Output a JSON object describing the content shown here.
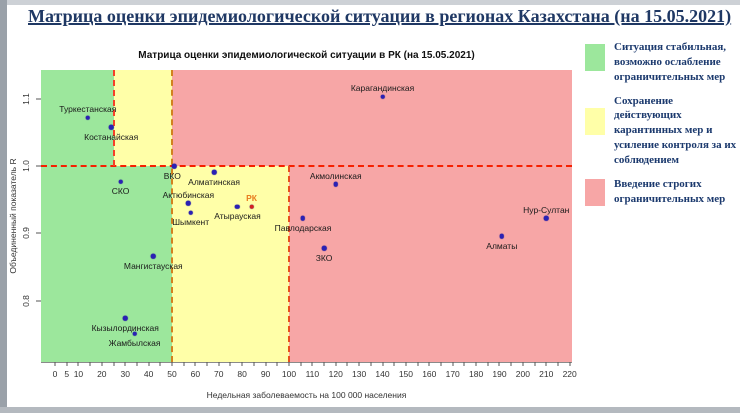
{
  "page": {
    "title": "Матрица оценки эпидемиологической ситуации в регионах Казахстана (на 15.05.2021)"
  },
  "legend": {
    "items": [
      {
        "color": "#9ce79c",
        "label": "Ситуация стабильная, возможно ослабление ограничительных мер",
        "swatch_offset": 4
      },
      {
        "color": "#ffffa8",
        "label": "Сохранение действующих карантинных мер и усиление контроля за их соблюдением",
        "swatch_offset": 14
      },
      {
        "color": "#f7a6a6",
        "label": "Введение строгих ограничительных мер",
        "swatch_offset": 2
      }
    ]
  },
  "chart_data": {
    "type": "scatter",
    "title": "Матрица оценки эпидемиологической ситуации в РК (на 15.05.2021)",
    "xlabel": "Недельная заболеваемость на 100 000 населения",
    "ylabel": "Объединенный показатель R",
    "xlim": [
      -6,
      221
    ],
    "ylim": [
      0.709,
      1.143
    ],
    "grid": false,
    "x_ticks": [
      0,
      5,
      10,
      20,
      30,
      40,
      50,
      60,
      70,
      80,
      90,
      100,
      110,
      120,
      130,
      140,
      150,
      160,
      170,
      180,
      190,
      200,
      210,
      220
    ],
    "x_minor": {
      "start": 0,
      "end": 220,
      "step": 5
    },
    "y_ticks": [
      "0.8",
      "0.9",
      "1.0",
      "1.1"
    ],
    "zones": [
      {
        "x1": -6,
        "x2": 25,
        "r1": 1.0,
        "r2": 1.143,
        "color": "#9ce79c",
        "meaning": "stable"
      },
      {
        "x1": 25,
        "x2": 50,
        "r1": 1.0,
        "r2": 1.143,
        "color": "#ffffa8",
        "meaning": "keep-measures"
      },
      {
        "x1": 50,
        "x2": 221,
        "r1": 1.0,
        "r2": 1.143,
        "color": "#f7a6a6",
        "meaning": "strict-measures"
      },
      {
        "x1": -6,
        "x2": 50,
        "r1": 0.709,
        "r2": 1.0,
        "color": "#9ce79c",
        "meaning": "stable"
      },
      {
        "x1": 50,
        "x2": 100,
        "r1": 0.709,
        "r2": 1.0,
        "color": "#ffffa8",
        "meaning": "keep-measures"
      },
      {
        "x1": 100,
        "x2": 221,
        "r1": 0.709,
        "r2": 1.0,
        "color": "#f7a6a6",
        "meaning": "strict-measures"
      }
    ],
    "threshold_lines": [
      {
        "orient": "h",
        "at": 1.0,
        "from": -6,
        "to": 221,
        "color": "#f52000"
      },
      {
        "orient": "v",
        "at": 25,
        "from": 1.0,
        "to": 1.143,
        "color": "#f54028"
      },
      {
        "orient": "v",
        "at": 50,
        "from": 0.709,
        "to": 1.143,
        "color": "#d2821e"
      },
      {
        "orient": "v",
        "at": 100,
        "from": 0.709,
        "to": 1.0,
        "color": "#e8501e"
      }
    ],
    "points": [
      {
        "name": "Туркестанская",
        "x": 14,
        "r": 1.072,
        "label_pos": "above"
      },
      {
        "name": "Костанайская",
        "x": 24,
        "r": 1.058,
        "label_pos": "below"
      },
      {
        "name": "Карагандинская",
        "x": 140,
        "r": 1.103,
        "label_pos": "above"
      },
      {
        "name": "СКО",
        "x": 28,
        "r": 0.977,
        "label_pos": "below"
      },
      {
        "name": "ВКО",
        "x": 51,
        "r": 1.0,
        "label_pos": "below",
        "dx": -2
      },
      {
        "name": "Алматинская",
        "x": 68,
        "r": 0.991,
        "label_pos": "below"
      },
      {
        "name": "Актюбинская",
        "x": 57,
        "r": 0.945,
        "label_pos": "above"
      },
      {
        "name": "Шымкент",
        "x": 58,
        "r": 0.931,
        "label_pos": "below"
      },
      {
        "name": "Атырауская",
        "x": 78,
        "r": 0.94,
        "label_pos": "below"
      },
      {
        "name": "РК",
        "x": 84,
        "r": 0.94,
        "label_pos": "above",
        "point_color": "#d42020",
        "label_color": "#e87c1e"
      },
      {
        "name": "Акмолинская",
        "x": 120,
        "r": 0.973,
        "label_pos": "above"
      },
      {
        "name": "Павлодарская",
        "x": 106,
        "r": 0.923,
        "label_pos": "below"
      },
      {
        "name": "ЗКО",
        "x": 115,
        "r": 0.878,
        "label_pos": "below"
      },
      {
        "name": "Нур-Султан",
        "x": 210,
        "r": 0.923,
        "label_pos": "above"
      },
      {
        "name": "Алматы",
        "x": 191,
        "r": 0.896,
        "label_pos": "below"
      },
      {
        "name": "Мангистауская",
        "x": 42,
        "r": 0.866,
        "label_pos": "below"
      },
      {
        "name": "Кызылординская",
        "x": 30,
        "r": 0.774,
        "label_pos": "below"
      },
      {
        "name": "Жамбылская",
        "x": 34,
        "r": 0.751,
        "label_pos": "below"
      }
    ]
  }
}
